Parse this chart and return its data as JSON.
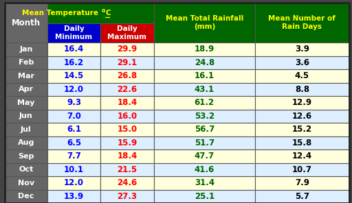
{
  "months": [
    "Jan",
    "Feb",
    "Mar",
    "Apr",
    "May",
    "Jun",
    "Jul",
    "Aug",
    "Sep",
    "Oct",
    "Nov",
    "Dec"
  ],
  "daily_min": [
    16.4,
    16.2,
    14.5,
    12.0,
    9.3,
    7.0,
    6.1,
    6.5,
    7.7,
    10.1,
    12.0,
    13.9
  ],
  "daily_max": [
    29.9,
    29.1,
    26.8,
    22.6,
    18.4,
    16.0,
    15.0,
    15.9,
    18.4,
    21.5,
    24.6,
    27.3
  ],
  "rainfall": [
    18.9,
    24.8,
    16.1,
    43.1,
    61.2,
    53.2,
    56.7,
    51.7,
    47.7,
    41.6,
    31.4,
    25.1
  ],
  "rain_days": [
    3.9,
    3.6,
    4.5,
    8.8,
    12.9,
    12.6,
    15.2,
    15.8,
    12.4,
    10.7,
    7.9,
    5.7
  ],
  "header_bg": "#006600",
  "header_text": "#FFFF00",
  "subheader_min_bg": "#0000CC",
  "subheader_max_bg": "#CC0000",
  "subheader_text": "#FFFFFF",
  "month_col_bg": "#666666",
  "month_col_text": "#FFFFFF",
  "row_bg_odd": "#FFFFDD",
  "row_bg_even": "#DDEEFF",
  "min_text_color": "#0000FF",
  "max_text_color": "#FF0000",
  "rainfall_text_color": "#006600",
  "rain_days_text_color": "#000000",
  "border_color": "#444444",
  "col3_header": "Mean Total Rainfall\n(mm)",
  "col4_header": "Mean Number of\nRain Days"
}
